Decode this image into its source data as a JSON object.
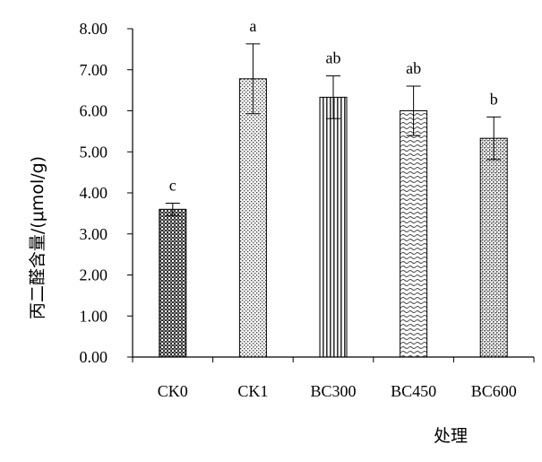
{
  "chart_data": {
    "type": "bar",
    "categories": [
      "CK0",
      "CK1",
      "BC300",
      "BC450",
      "BC600"
    ],
    "values": [
      3.6,
      6.78,
      6.33,
      6.0,
      5.33
    ],
    "error": [
      0.15,
      0.85,
      0.52,
      0.6,
      0.52
    ],
    "significance": [
      "c",
      "a",
      "ab",
      "ab",
      "b"
    ],
    "ylim": [
      0,
      8
    ],
    "yticks": [
      "0.00",
      "1.00",
      "2.00",
      "3.00",
      "4.00",
      "5.00",
      "6.00",
      "7.00",
      "8.00"
    ],
    "xlabel": "处理",
    "ylabel": "丙二醛含量/(μmol/g)",
    "grid": false,
    "legend": "none",
    "patterns": [
      "dense-cross",
      "dots",
      "vertical-lines",
      "waves",
      "checker"
    ]
  }
}
